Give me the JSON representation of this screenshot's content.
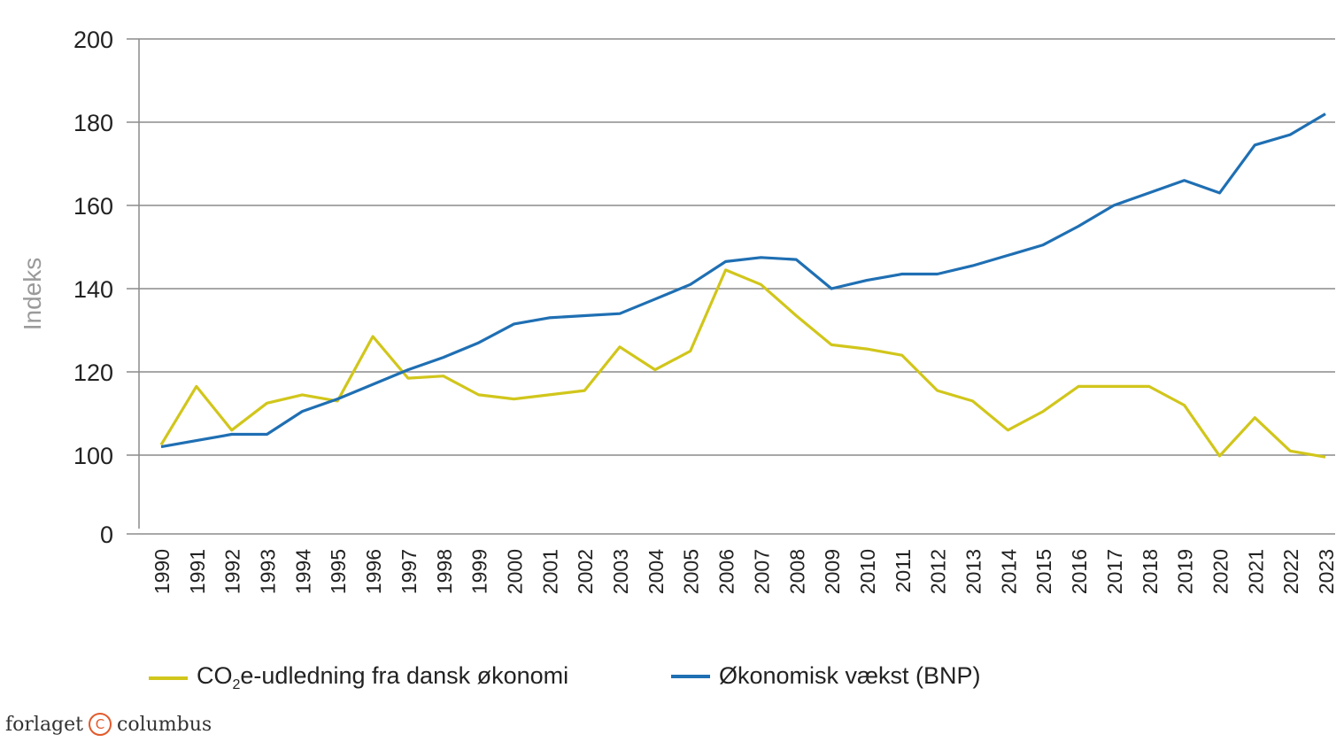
{
  "chart_data": {
    "type": "line",
    "ylabel": "Indeks",
    "ylim": [
      0,
      200
    ],
    "yticks": [
      {
        "label": "200",
        "pos": 200
      },
      {
        "label": "180",
        "pos": 180
      },
      {
        "label": "160",
        "pos": 160
      },
      {
        "label": "140",
        "pos": 140
      },
      {
        "label": "120",
        "pos": 120
      },
      {
        "label": "100",
        "pos": 100
      },
      {
        "label": "0",
        "pos": 0
      }
    ],
    "axis_break": {
      "from": 0,
      "to": 100
    },
    "grid": true,
    "x": [
      "1990",
      "1991",
      "1992",
      "1993",
      "1994",
      "1995",
      "1996",
      "1997",
      "1998",
      "1999",
      "2000",
      "2001",
      "2002",
      "2003",
      "2004",
      "2005",
      "2006",
      "2007",
      "2008",
      "2009",
      "2010",
      "2011",
      "2012",
      "2013",
      "2014",
      "2015",
      "2016",
      "2017",
      "2018",
      "2019",
      "2020",
      "2021",
      "2022",
      "2023"
    ],
    "series": [
      {
        "name_parts": [
          "CO",
          "2",
          "e-udledning fra dansk økonomi"
        ],
        "color": "#d1c61b",
        "values": [
          102.5,
          116.5,
          106,
          112.5,
          114.5,
          113,
          128.5,
          118.5,
          119,
          114.5,
          113.5,
          114.5,
          115.5,
          126,
          120.5,
          125,
          144.5,
          141,
          133.5,
          126.5,
          125.5,
          124,
          115.5,
          113,
          106,
          110.5,
          116.5,
          116.5,
          116.5,
          112,
          99,
          109,
          101,
          97.5
        ]
      },
      {
        "name": "Økonomisk vækst (BNP)",
        "color": "#1f6fb3",
        "values": [
          102,
          103.5,
          105,
          105,
          110.5,
          113.5,
          117,
          120.5,
          123.5,
          127,
          131.5,
          133,
          133.5,
          134,
          137.5,
          141,
          146.5,
          147.5,
          147,
          140,
          142,
          143.5,
          143.5,
          145.5,
          148,
          150.5,
          155,
          160,
          163,
          166,
          163,
          174.5,
          177,
          182
        ]
      }
    ]
  },
  "brand": {
    "left": "forlaget",
    "symbol": "C",
    "right": "columbus"
  }
}
